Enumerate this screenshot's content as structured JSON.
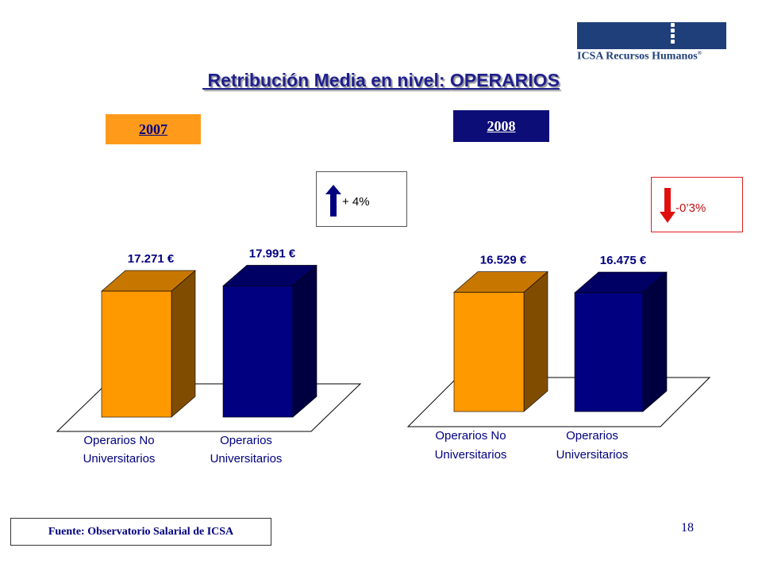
{
  "logo": {
    "text": "ICSA Recursos Humanos",
    "mark": "®"
  },
  "title": {
    "prefix": " Retribución Media en nivel: ",
    "highlight": "OPERARIOS"
  },
  "years": [
    "2007",
    "2008"
  ],
  "deltas": [
    {
      "text": "+ 4%",
      "direction": "up",
      "color": "#000080"
    },
    {
      "text": "-0’3%",
      "direction": "down",
      "color": "#e01010"
    }
  ],
  "chart_data": [
    {
      "type": "bar",
      "title": "2007",
      "categories": [
        "Operarios No Universitarios",
        "Operarios Universitarios"
      ],
      "category_lines": [
        [
          "Operarios No",
          "Universitarios"
        ],
        [
          "Operarios",
          "Universitarios"
        ]
      ],
      "values": [
        17271,
        17991
      ],
      "value_labels": [
        "17.271 €",
        "17.991 €"
      ],
      "colors": [
        "#ff9900",
        "#000080"
      ],
      "style": "3d"
    },
    {
      "type": "bar",
      "title": "2008",
      "categories": [
        "Operarios No Universitarios",
        "Operarios Universitarios"
      ],
      "category_lines": [
        [
          "Operarios No",
          "Universitarios"
        ],
        [
          "Operarios",
          "Universitarios"
        ]
      ],
      "values": [
        16529,
        16475
      ],
      "value_labels": [
        "16.529 €",
        "16.475 €"
      ],
      "colors": [
        "#ff9900",
        "#000080"
      ],
      "style": "3d"
    }
  ],
  "source": "Fuente: Observatorio Salarial de ICSA",
  "page_number": "18"
}
